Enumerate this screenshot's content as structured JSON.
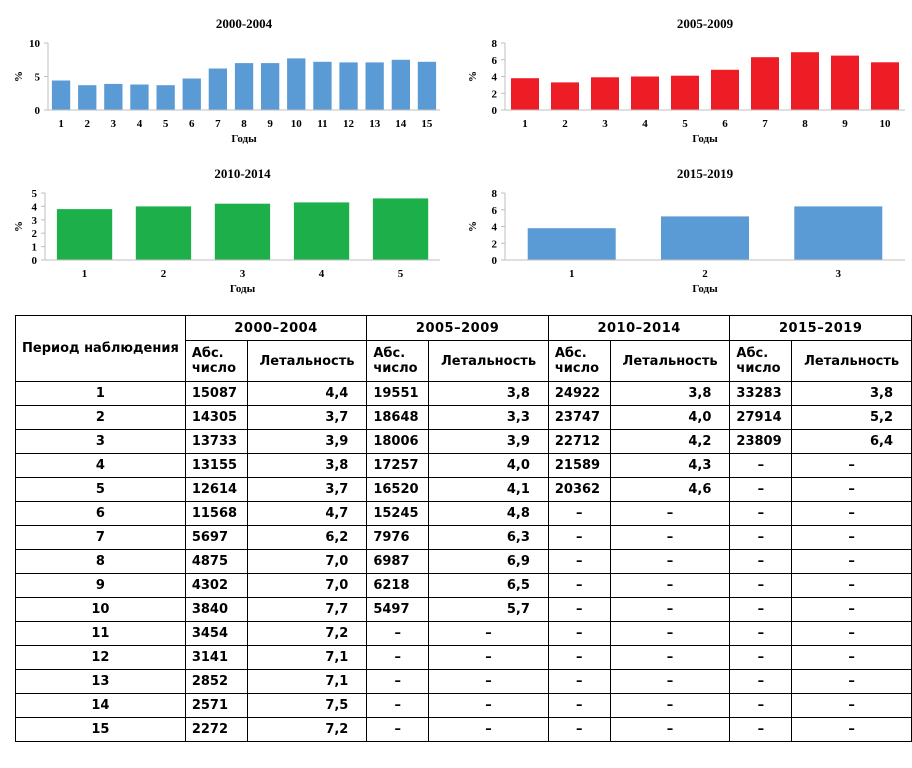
{
  "colors": {
    "blue": "#5b9bd5",
    "red": "#ee1c25",
    "green": "#1db04a",
    "axis": "#bfbfbf"
  },
  "chart_data": [
    {
      "type": "bar",
      "title": "2000-2004",
      "xlabel": "Годы",
      "ylabel": "%",
      "categories": [
        "1",
        "2",
        "3",
        "4",
        "5",
        "6",
        "7",
        "8",
        "9",
        "10",
        "11",
        "12",
        "13",
        "14",
        "15"
      ],
      "values": [
        4.4,
        3.7,
        3.9,
        3.8,
        3.7,
        4.7,
        6.2,
        7.0,
        7.0,
        7.7,
        7.2,
        7.1,
        7.1,
        7.5,
        7.2
      ],
      "ylim": [
        0,
        10
      ],
      "yticks": [
        "0",
        "5",
        "10"
      ],
      "color": "#5b9bd5",
      "grid": false
    },
    {
      "type": "bar",
      "title": "2005-2009",
      "xlabel": "Годы",
      "ylabel": "%",
      "categories": [
        "1",
        "2",
        "3",
        "4",
        "5",
        "6",
        "7",
        "8",
        "9",
        "10"
      ],
      "values": [
        3.8,
        3.3,
        3.9,
        4.0,
        4.1,
        4.8,
        6.3,
        6.9,
        6.5,
        5.7
      ],
      "ylim": [
        0,
        8
      ],
      "yticks": [
        "0",
        "2",
        "4",
        "6",
        "8"
      ],
      "color": "#ee1c25",
      "grid": false
    },
    {
      "type": "bar",
      "title": "2010-2014",
      "xlabel": "Годы",
      "ylabel": "%",
      "categories": [
        "1",
        "2",
        "3",
        "4",
        "5"
      ],
      "values": [
        3.8,
        4.0,
        4.2,
        4.3,
        4.6
      ],
      "ylim": [
        0,
        5
      ],
      "yticks": [
        "0",
        "1",
        "2",
        "3",
        "4",
        "5"
      ],
      "color": "#1db04a",
      "grid": false
    },
    {
      "type": "bar",
      "title": "2015-2019",
      "xlabel": "Годы",
      "ylabel": "%",
      "categories": [
        "1",
        "2",
        "3"
      ],
      "values": [
        3.8,
        5.2,
        6.4
      ],
      "ylim": [
        0,
        8
      ],
      "yticks": [
        "0",
        "2",
        "4",
        "6",
        "8"
      ],
      "color": "#5b9bd5",
      "grid": false
    }
  ],
  "table": {
    "period_header": "Период наблюдения",
    "groups": [
      "2000–2004",
      "2005–2009",
      "2010–2014",
      "2015–2019"
    ],
    "sub_abs": "Абс. число",
    "sub_let": "Летальность",
    "rows": [
      [
        "1",
        "15087",
        "4,4",
        "19551",
        "3,8",
        "24922",
        "3,8",
        "33283",
        "3,8"
      ],
      [
        "2",
        "14305",
        "3,7",
        "18648",
        "3,3",
        "23747",
        "4,0",
        "27914",
        "5,2"
      ],
      [
        "3",
        "13733",
        "3,9",
        "18006",
        "3,9",
        "22712",
        "4,2",
        "23809",
        "6,4"
      ],
      [
        "4",
        "13155",
        "3,8",
        "17257",
        "4,0",
        "21589",
        "4,3",
        "–",
        "–"
      ],
      [
        "5",
        "12614",
        "3,7",
        "16520",
        "4,1",
        "20362",
        "4,6",
        "–",
        "–"
      ],
      [
        "6",
        "11568",
        "4,7",
        "15245",
        "4,8",
        "–",
        "–",
        "–",
        "–"
      ],
      [
        "7",
        "5697",
        "6,2",
        "7976",
        "6,3",
        "–",
        "–",
        "–",
        "–"
      ],
      [
        "8",
        "4875",
        "7,0",
        "6987",
        "6,9",
        "–",
        "–",
        "–",
        "–"
      ],
      [
        "9",
        "4302",
        "7,0",
        "6218",
        "6,5",
        "–",
        "–",
        "–",
        "–"
      ],
      [
        "10",
        "3840",
        "7,7",
        "5497",
        "5,7",
        "–",
        "–",
        "–",
        "–"
      ],
      [
        "11",
        "3454",
        "7,2",
        "–",
        "–",
        "–",
        "–",
        "–",
        "–"
      ],
      [
        "12",
        "3141",
        "7,1",
        "–",
        "–",
        "–",
        "–",
        "–",
        "–"
      ],
      [
        "13",
        "2852",
        "7,1",
        "–",
        "–",
        "–",
        "–",
        "–",
        "–"
      ],
      [
        "14",
        "2571",
        "7,5",
        "–",
        "–",
        "–",
        "–",
        "–",
        "–"
      ],
      [
        "15",
        "2272",
        "7,2",
        "–",
        "–",
        "–",
        "–",
        "–",
        "–"
      ]
    ]
  }
}
